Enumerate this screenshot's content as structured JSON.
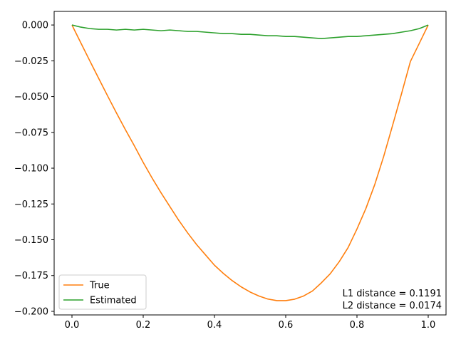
{
  "chart_data": {
    "type": "line",
    "title": "",
    "xlabel": "",
    "ylabel": "",
    "xlim": [
      -0.05,
      1.05
    ],
    "ylim": [
      -0.2025,
      0.0095
    ],
    "xticks": [
      0.0,
      0.2,
      0.4,
      0.6,
      0.8,
      1.0
    ],
    "xtick_labels": [
      "0.0",
      "0.2",
      "0.4",
      "0.6",
      "0.8",
      "1.0"
    ],
    "yticks": [
      0.0,
      -0.025,
      -0.05,
      -0.075,
      -0.1,
      -0.125,
      -0.15,
      -0.175,
      -0.2
    ],
    "ytick_labels": [
      "0.000",
      "−0.025",
      "−0.050",
      "−0.075",
      "−0.100",
      "−0.125",
      "−0.150",
      "−0.175",
      "−0.200"
    ],
    "grid": false,
    "legend_position": "lower-left",
    "series": [
      {
        "name": "True",
        "color": "#ff7f0e",
        "x": [
          0.0,
          0.025,
          0.05,
          0.075,
          0.1,
          0.125,
          0.15,
          0.175,
          0.2,
          0.225,
          0.25,
          0.275,
          0.3,
          0.325,
          0.35,
          0.375,
          0.4,
          0.425,
          0.45,
          0.475,
          0.5,
          0.525,
          0.55,
          0.575,
          0.6,
          0.625,
          0.65,
          0.675,
          0.7,
          0.725,
          0.75,
          0.775,
          0.8,
          0.825,
          0.85,
          0.875,
          0.9,
          0.925,
          0.95,
          0.975,
          1.0
        ],
        "y": [
          0.0,
          -0.0125,
          -0.025,
          -0.0373,
          -0.0495,
          -0.0615,
          -0.0731,
          -0.0843,
          -0.096,
          -0.1069,
          -0.1172,
          -0.1269,
          -0.1365,
          -0.1453,
          -0.1534,
          -0.1606,
          -0.1678,
          -0.1735,
          -0.1786,
          -0.1829,
          -0.1865,
          -0.1893,
          -0.1914,
          -0.1925,
          -0.1925,
          -0.1915,
          -0.1893,
          -0.1858,
          -0.1801,
          -0.1737,
          -0.1654,
          -0.1555,
          -0.1425,
          -0.1282,
          -0.1114,
          -0.0918,
          -0.0701,
          -0.0481,
          -0.0255,
          -0.0128,
          0.0
        ]
      },
      {
        "name": "Estimated",
        "color": "#2ca02c",
        "x": [
          0.0,
          0.025,
          0.05,
          0.075,
          0.1,
          0.125,
          0.15,
          0.175,
          0.2,
          0.225,
          0.25,
          0.275,
          0.3,
          0.325,
          0.35,
          0.375,
          0.4,
          0.425,
          0.45,
          0.475,
          0.5,
          0.525,
          0.55,
          0.575,
          0.6,
          0.625,
          0.65,
          0.675,
          0.7,
          0.725,
          0.75,
          0.775,
          0.8,
          0.825,
          0.85,
          0.875,
          0.9,
          0.925,
          0.95,
          0.975,
          1.0
        ],
        "y": [
          0.0,
          -0.0015,
          -0.0025,
          -0.003,
          -0.003,
          -0.0035,
          -0.003,
          -0.0035,
          -0.003,
          -0.0035,
          -0.004,
          -0.0035,
          -0.004,
          -0.0045,
          -0.0045,
          -0.005,
          -0.0055,
          -0.006,
          -0.006,
          -0.0065,
          -0.0065,
          -0.007,
          -0.0075,
          -0.0075,
          -0.008,
          -0.008,
          -0.0085,
          -0.009,
          -0.0095,
          -0.009,
          -0.0085,
          -0.008,
          -0.008,
          -0.0075,
          -0.007,
          -0.0065,
          -0.006,
          -0.005,
          -0.004,
          -0.0025,
          0.0
        ]
      }
    ],
    "annotations": [
      "L1 distance = 0.1191",
      "L2 distance = 0.0174"
    ]
  }
}
